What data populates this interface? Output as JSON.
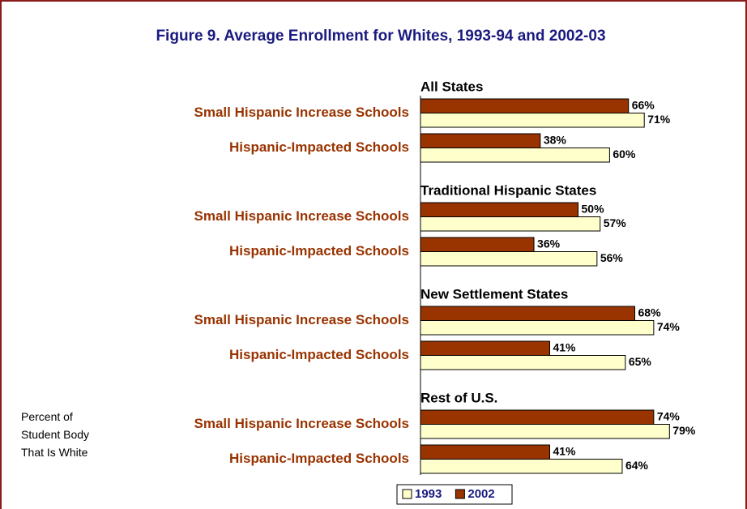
{
  "chart_data": {
    "type": "bar",
    "orientation": "horizontal",
    "title": "Figure 9. Average Enrollment for Whites, 1993-94 and 2002-03",
    "axis_label": "Percent of Student Body That Is White",
    "groups": [
      "All States",
      "Traditional Hispanic States",
      "New Settlement States",
      "Rest of U.S."
    ],
    "categories": [
      "Small Hispanic Increase Schools",
      "Hispanic-Impacted Schools",
      "Small Hispanic Increase Schools",
      "Hispanic-Impacted Schools",
      "Small Hispanic Increase Schools",
      "Hispanic-Impacted Schools",
      "Small Hispanic Increase Schools",
      "Hispanic-Impacted Schools"
    ],
    "series": [
      {
        "name": "1993",
        "color": "#ffffcc",
        "values": [
          71,
          60,
          57,
          56,
          74,
          65,
          79,
          64
        ],
        "value_labels": [
          "71%",
          "60%",
          "57%",
          "56%",
          "74%",
          "65%",
          "79%",
          "64%"
        ]
      },
      {
        "name": "2002",
        "color": "#993300",
        "values": [
          66,
          38,
          50,
          36,
          68,
          41,
          74,
          41
        ],
        "value_labels": [
          "66%",
          "38%",
          "50%",
          "36%",
          "68%",
          "41%",
          "74%",
          "41%"
        ]
      }
    ],
    "xlim": [
      0,
      100
    ],
    "legend": "bottom"
  }
}
